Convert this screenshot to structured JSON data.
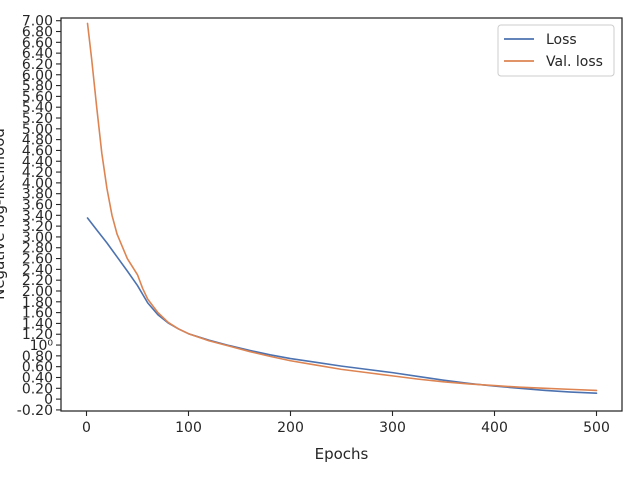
{
  "chart_data": {
    "type": "line",
    "xlabel": "Epochs",
    "ylabel": "Negative log-likelihood",
    "xlim": [
      -25,
      525
    ],
    "ylim": [
      -0.22,
      7.05
    ],
    "grid": false,
    "legend_position": "top-right",
    "x_ticks": [
      {
        "value": 0,
        "label": "0"
      },
      {
        "value": 100,
        "label": "100"
      },
      {
        "value": 200,
        "label": "200"
      },
      {
        "value": 300,
        "label": "300"
      },
      {
        "value": 400,
        "label": "400"
      },
      {
        "value": 500,
        "label": "500"
      }
    ],
    "y_ticks": [
      {
        "value": -0.2,
        "label": "-0.20"
      },
      {
        "value": 0,
        "label": "0"
      },
      {
        "value": 0.2,
        "label": "0.20"
      },
      {
        "value": 0.4,
        "label": "0.40"
      },
      {
        "value": 0.6,
        "label": "0.60"
      },
      {
        "value": 0.8,
        "label": "0.80"
      },
      {
        "value": 1.0,
        "label": "10⁰"
      },
      {
        "value": 1.2,
        "label": "1.20"
      },
      {
        "value": 1.4,
        "label": "1.40"
      },
      {
        "value": 1.6,
        "label": "1.60"
      },
      {
        "value": 1.8,
        "label": "1.80"
      },
      {
        "value": 2.0,
        "label": "2.00"
      },
      {
        "value": 2.2,
        "label": "2.20"
      },
      {
        "value": 2.4,
        "label": "2.40"
      },
      {
        "value": 2.6,
        "label": "2.60"
      },
      {
        "value": 2.8,
        "label": "2.80"
      },
      {
        "value": 3.0,
        "label": "3.00"
      },
      {
        "value": 3.2,
        "label": "3.20"
      },
      {
        "value": 3.4,
        "label": "3.40"
      },
      {
        "value": 3.6,
        "label": "3.60"
      },
      {
        "value": 3.8,
        "label": "3.80"
      },
      {
        "value": 4.0,
        "label": "4.00"
      },
      {
        "value": 4.2,
        "label": "4.20"
      },
      {
        "value": 4.4,
        "label": "4.40"
      },
      {
        "value": 4.6,
        "label": "4.60"
      },
      {
        "value": 4.8,
        "label": "4.80"
      },
      {
        "value": 5.0,
        "label": "5.00"
      },
      {
        "value": 5.2,
        "label": "5.20"
      },
      {
        "value": 5.4,
        "label": "5.40"
      },
      {
        "value": 5.6,
        "label": "5.60"
      },
      {
        "value": 5.8,
        "label": "5.80"
      },
      {
        "value": 6.0,
        "label": "6.00"
      },
      {
        "value": 6.2,
        "label": "6.20"
      },
      {
        "value": 6.4,
        "label": "6.40"
      },
      {
        "value": 6.6,
        "label": "6.60"
      },
      {
        "value": 6.8,
        "label": "6.80"
      },
      {
        "value": 7.0,
        "label": "7.00"
      }
    ],
    "series": [
      {
        "name": "Loss",
        "color": "#4c72b0",
        "x": [
          1,
          10,
          20,
          30,
          40,
          50,
          60,
          70,
          80,
          90,
          100,
          120,
          140,
          160,
          180,
          200,
          225,
          250,
          275,
          300,
          325,
          350,
          375,
          400,
          425,
          450,
          475,
          500
        ],
        "y": [
          3.35,
          3.13,
          2.89,
          2.63,
          2.37,
          2.1,
          1.78,
          1.56,
          1.41,
          1.3,
          1.21,
          1.09,
          0.99,
          0.9,
          0.82,
          0.75,
          0.68,
          0.61,
          0.55,
          0.49,
          0.42,
          0.35,
          0.29,
          0.24,
          0.2,
          0.16,
          0.13,
          0.11
        ]
      },
      {
        "name": "Val. loss",
        "color": "#dd8452",
        "x": [
          1,
          5,
          10,
          15,
          20,
          25,
          30,
          40,
          50,
          55,
          60,
          70,
          80,
          90,
          100,
          120,
          140,
          160,
          180,
          200,
          225,
          250,
          275,
          300,
          325,
          350,
          375,
          400,
          425,
          450,
          475,
          500
        ],
        "y": [
          6.95,
          6.3,
          5.4,
          4.55,
          3.9,
          3.4,
          3.05,
          2.6,
          2.3,
          2.05,
          1.85,
          1.6,
          1.42,
          1.3,
          1.21,
          1.08,
          0.98,
          0.88,
          0.79,
          0.71,
          0.63,
          0.55,
          0.49,
          0.43,
          0.37,
          0.32,
          0.28,
          0.25,
          0.22,
          0.2,
          0.18,
          0.16
        ]
      }
    ]
  }
}
